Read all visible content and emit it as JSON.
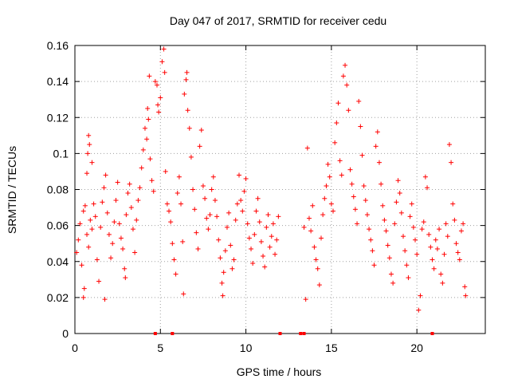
{
  "chart_data": {
    "type": "scatter",
    "title": "Day 047 of 2017, SRMTID for receiver cedu",
    "xlabel": "GPS time / hours",
    "ylabel": "SRMTID / TECUs",
    "xlim": [
      0,
      24
    ],
    "ylim": [
      0,
      0.16
    ],
    "xticks": [
      0,
      5,
      10,
      15,
      20
    ],
    "xtick_labels": [
      "0",
      "5",
      "10",
      "15",
      "20"
    ],
    "yticks": [
      0,
      0.02,
      0.04,
      0.06,
      0.08,
      0.1,
      0.12,
      0.14,
      0.16
    ],
    "ytick_labels": [
      "0",
      "0.02",
      "0.04",
      "0.06",
      "0.08",
      "0.1",
      "0.12",
      "0.14",
      "0.16"
    ],
    "grid": true,
    "marker_color": "#ff0000",
    "marker": "+",
    "series": [
      {
        "name": "SRMTID",
        "points": [
          [
            0.1,
            0.045
          ],
          [
            0.2,
            0.052
          ],
          [
            0.3,
            0.061
          ],
          [
            0.4,
            0.038
          ],
          [
            0.5,
            0.068
          ],
          [
            0.6,
            0.071
          ],
          [
            0.7,
            0.055
          ],
          [
            0.8,
            0.048
          ],
          [
            0.9,
            0.063
          ],
          [
            1.0,
            0.058
          ],
          [
            0.5,
            0.02
          ],
          [
            0.55,
            0.025
          ],
          [
            0.7,
            0.089
          ],
          [
            0.75,
            0.1
          ],
          [
            0.8,
            0.11
          ],
          [
            0.85,
            0.105
          ],
          [
            1.0,
            0.095
          ],
          [
            1.1,
            0.072
          ],
          [
            1.2,
            0.065
          ],
          [
            1.3,
            0.041
          ],
          [
            1.4,
            0.029
          ],
          [
            1.5,
            0.059
          ],
          [
            1.6,
            0.073
          ],
          [
            1.7,
            0.081
          ],
          [
            1.75,
            0.019
          ],
          [
            1.8,
            0.088
          ],
          [
            1.9,
            0.067
          ],
          [
            2.0,
            0.055
          ],
          [
            2.1,
            0.042
          ],
          [
            2.2,
            0.05
          ],
          [
            2.3,
            0.062
          ],
          [
            2.4,
            0.074
          ],
          [
            2.5,
            0.084
          ],
          [
            2.6,
            0.061
          ],
          [
            2.7,
            0.053
          ],
          [
            2.8,
            0.047
          ],
          [
            2.9,
            0.036
          ],
          [
            2.95,
            0.031
          ],
          [
            3.0,
            0.066
          ],
          [
            3.1,
            0.078
          ],
          [
            3.2,
            0.083
          ],
          [
            3.3,
            0.07
          ],
          [
            3.4,
            0.058
          ],
          [
            3.5,
            0.045
          ],
          [
            3.6,
            0.063
          ],
          [
            3.7,
            0.074
          ],
          [
            3.8,
            0.081
          ],
          [
            3.9,
            0.092
          ],
          [
            4.0,
            0.102
          ],
          [
            4.1,
            0.114
          ],
          [
            4.2,
            0.108
          ],
          [
            4.25,
            0.125
          ],
          [
            4.3,
            0.119
          ],
          [
            4.35,
            0.143
          ],
          [
            4.4,
            0.097
          ],
          [
            4.5,
            0.085
          ],
          [
            4.6,
            0.079
          ],
          [
            4.7,
            0.14
          ],
          [
            4.8,
            0.138
          ],
          [
            4.85,
            0.127
          ],
          [
            4.9,
            0.123
          ],
          [
            5.0,
            0.131
          ],
          [
            5.1,
            0.151
          ],
          [
            5.2,
            0.158
          ],
          [
            5.25,
            0.145
          ],
          [
            5.3,
            0.09
          ],
          [
            5.4,
            0.072
          ],
          [
            5.5,
            0.068
          ],
          [
            5.6,
            0.062
          ],
          [
            5.7,
            0.05
          ],
          [
            5.8,
            0.041
          ],
          [
            5.9,
            0.033
          ],
          [
            6.0,
            0.078
          ],
          [
            6.1,
            0.087
          ],
          [
            6.2,
            0.072
          ],
          [
            6.3,
            0.051
          ],
          [
            6.35,
            0.022
          ],
          [
            6.4,
            0.133
          ],
          [
            6.5,
            0.141
          ],
          [
            6.55,
            0.145
          ],
          [
            6.6,
            0.124
          ],
          [
            6.7,
            0.114
          ],
          [
            6.8,
            0.098
          ],
          [
            6.9,
            0.08
          ],
          [
            7.0,
            0.069
          ],
          [
            7.1,
            0.056
          ],
          [
            7.2,
            0.047
          ],
          [
            7.3,
            0.104
          ],
          [
            7.4,
            0.113
          ],
          [
            7.5,
            0.082
          ],
          [
            7.6,
            0.075
          ],
          [
            7.7,
            0.064
          ],
          [
            7.8,
            0.058
          ],
          [
            7.9,
            0.066
          ],
          [
            8.0,
            0.08
          ],
          [
            8.1,
            0.087
          ],
          [
            8.2,
            0.074
          ],
          [
            8.3,
            0.065
          ],
          [
            8.4,
            0.052
          ],
          [
            8.5,
            0.042
          ],
          [
            8.6,
            0.028
          ],
          [
            8.65,
            0.021
          ],
          [
            8.7,
            0.034
          ],
          [
            8.8,
            0.046
          ],
          [
            8.9,
            0.059
          ],
          [
            9.0,
            0.067
          ],
          [
            9.1,
            0.049
          ],
          [
            9.2,
            0.036
          ],
          [
            9.3,
            0.041
          ],
          [
            9.4,
            0.063
          ],
          [
            9.5,
            0.072
          ],
          [
            9.6,
            0.088
          ],
          [
            9.7,
            0.074
          ],
          [
            9.8,
            0.068
          ],
          [
            9.9,
            0.079
          ],
          [
            10.0,
            0.086
          ],
          [
            10.1,
            0.061
          ],
          [
            10.2,
            0.053
          ],
          [
            10.3,
            0.047
          ],
          [
            10.4,
            0.039
          ],
          [
            10.5,
            0.055
          ],
          [
            10.6,
            0.068
          ],
          [
            10.7,
            0.075
          ],
          [
            10.8,
            0.062
          ],
          [
            10.9,
            0.051
          ],
          [
            11.0,
            0.043
          ],
          [
            11.1,
            0.037
          ],
          [
            11.2,
            0.059
          ],
          [
            11.3,
            0.066
          ],
          [
            11.4,
            0.048
          ],
          [
            11.5,
            0.054
          ],
          [
            11.6,
            0.061
          ],
          [
            11.7,
            0.044
          ],
          [
            11.8,
            0.052
          ],
          [
            11.9,
            0.065
          ],
          [
            13.4,
            0.059
          ],
          [
            13.5,
            0.019
          ],
          [
            13.6,
            0.103
          ],
          [
            13.7,
            0.064
          ],
          [
            13.8,
            0.057
          ],
          [
            13.9,
            0.071
          ],
          [
            14.0,
            0.048
          ],
          [
            14.1,
            0.041
          ],
          [
            14.2,
            0.036
          ],
          [
            14.3,
            0.027
          ],
          [
            14.4,
            0.053
          ],
          [
            14.5,
            0.066
          ],
          [
            14.6,
            0.075
          ],
          [
            14.7,
            0.082
          ],
          [
            14.8,
            0.094
          ],
          [
            14.9,
            0.087
          ],
          [
            15.0,
            0.072
          ],
          [
            15.1,
            0.068
          ],
          [
            15.2,
            0.106
          ],
          [
            15.3,
            0.117
          ],
          [
            15.4,
            0.128
          ],
          [
            15.5,
            0.096
          ],
          [
            15.6,
            0.088
          ],
          [
            15.7,
            0.143
          ],
          [
            15.8,
            0.149
          ],
          [
            15.9,
            0.138
          ],
          [
            16.0,
            0.124
          ],
          [
            16.1,
            0.091
          ],
          [
            16.2,
            0.083
          ],
          [
            16.3,
            0.076
          ],
          [
            16.4,
            0.069
          ],
          [
            16.5,
            0.061
          ],
          [
            16.6,
            0.129
          ],
          [
            16.7,
            0.115
          ],
          [
            16.8,
            0.099
          ],
          [
            16.9,
            0.082
          ],
          [
            17.0,
            0.074
          ],
          [
            17.1,
            0.066
          ],
          [
            17.2,
            0.058
          ],
          [
            17.3,
            0.052
          ],
          [
            17.4,
            0.046
          ],
          [
            17.5,
            0.038
          ],
          [
            17.6,
            0.104
          ],
          [
            17.7,
            0.112
          ],
          [
            17.8,
            0.095
          ],
          [
            17.9,
            0.083
          ],
          [
            18.0,
            0.071
          ],
          [
            18.1,
            0.063
          ],
          [
            18.2,
            0.057
          ],
          [
            18.3,
            0.049
          ],
          [
            18.4,
            0.042
          ],
          [
            18.5,
            0.033
          ],
          [
            18.6,
            0.028
          ],
          [
            18.7,
            0.061
          ],
          [
            18.8,
            0.073
          ],
          [
            18.9,
            0.085
          ],
          [
            19.0,
            0.078
          ],
          [
            19.1,
            0.067
          ],
          [
            19.2,
            0.054
          ],
          [
            19.3,
            0.046
          ],
          [
            19.4,
            0.038
          ],
          [
            19.5,
            0.031
          ],
          [
            19.6,
            0.065
          ],
          [
            19.7,
            0.072
          ],
          [
            19.8,
            0.059
          ],
          [
            19.9,
            0.052
          ],
          [
            20.0,
            0.044
          ],
          [
            20.1,
            0.013
          ],
          [
            20.2,
            0.021
          ],
          [
            20.3,
            0.058
          ],
          [
            20.4,
            0.062
          ],
          [
            20.5,
            0.087
          ],
          [
            20.6,
            0.081
          ],
          [
            20.7,
            0.055
          ],
          [
            20.8,
            0.048
          ],
          [
            20.9,
            0.041
          ],
          [
            21.0,
            0.036
          ],
          [
            21.1,
            0.052
          ],
          [
            21.2,
            0.047
          ],
          [
            21.3,
            0.058
          ],
          [
            21.4,
            0.033
          ],
          [
            21.5,
            0.028
          ],
          [
            21.6,
            0.044
          ],
          [
            21.7,
            0.061
          ],
          [
            21.8,
            0.054
          ],
          [
            21.9,
            0.105
          ],
          [
            22.0,
            0.095
          ],
          [
            22.1,
            0.072
          ],
          [
            22.2,
            0.063
          ],
          [
            22.3,
            0.05
          ],
          [
            22.4,
            0.045
          ],
          [
            22.5,
            0.041
          ],
          [
            22.6,
            0.057
          ],
          [
            22.7,
            0.061
          ],
          [
            22.8,
            0.026
          ],
          [
            22.85,
            0.021
          ]
        ]
      }
    ],
    "zero_markers_x": [
      4.7,
      5.7,
      12.0,
      13.2,
      13.4,
      20.9
    ]
  }
}
